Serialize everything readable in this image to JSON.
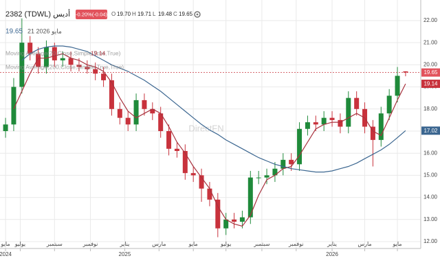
{
  "header": {
    "symbol": "2382 (TDWL) أديس",
    "change": "-0.20%(-0.04)",
    "ohlc": [
      {
        "label": "O",
        "value": "19.70"
      },
      {
        "label": "H",
        "value": "19.71"
      },
      {
        "label": "L",
        "value": "19.48"
      },
      {
        "label": "C",
        "value": "19.65"
      }
    ],
    "price": "19.65",
    "date": "21 مايو 2026",
    "watermark": "DirectFN"
  },
  "chart_data": {
    "type": "candlestick",
    "x": [
      0,
      0.5,
      1,
      1.5,
      2,
      2.5,
      3,
      3.5,
      4,
      4.5,
      5,
      5.5,
      6,
      6.5,
      7,
      7.5,
      8,
      8.5,
      9,
      9.5,
      10,
      10.5,
      11,
      11.5,
      12,
      12.5,
      13,
      13.5,
      14,
      14.5,
      15,
      15.5,
      16,
      16.5,
      17,
      17.5,
      18,
      18.5,
      19,
      19.5,
      20,
      20.5,
      21,
      21.5,
      22,
      22.5,
      23,
      23.5,
      24,
      24.5
    ],
    "open": [
      17.0,
      17.3,
      19.0,
      21.0,
      20.5,
      19.9,
      20.8,
      20.2,
      20.3,
      20.0,
      19.9,
      19.8,
      19.6,
      19.3,
      18.0,
      17.6,
      17.3,
      18.4,
      18.0,
      17.8,
      17.0,
      16.2,
      16.1,
      15.1,
      15.0,
      14.4,
      13.9,
      12.6,
      13.0,
      12.9,
      13.1,
      14.9,
      14.9,
      15.0,
      15.3,
      15.7,
      15.5,
      17.1,
      17.4,
      17.3,
      17.6,
      17.5,
      17.2,
      18.5,
      18.0,
      17.2,
      16.6,
      17.8,
      18.6,
      19.7
    ],
    "high": [
      17.6,
      19.4,
      22.1,
      21.3,
      20.8,
      21.1,
      21.0,
      20.6,
      20.6,
      20.3,
      20.2,
      20.1,
      19.9,
      19.6,
      18.3,
      17.9,
      18.7,
      18.7,
      18.3,
      18.1,
      17.3,
      16.5,
      16.4,
      15.4,
      15.3,
      14.7,
      14.2,
      13.3,
      13.3,
      13.4,
      15.2,
      15.2,
      15.3,
      15.6,
      16.0,
      16.0,
      17.4,
      17.7,
      17.7,
      17.9,
      17.9,
      17.8,
      18.8,
      18.8,
      18.3,
      17.5,
      18.1,
      18.9,
      19.9,
      19.71
    ],
    "low": [
      16.7,
      17.0,
      18.7,
      20.2,
      19.6,
      19.6,
      19.9,
      19.9,
      19.7,
      19.7,
      19.6,
      19.3,
      19.0,
      17.7,
      17.3,
      17.0,
      17.0,
      17.7,
      17.5,
      16.7,
      15.9,
      15.8,
      14.8,
      14.7,
      13.8,
      13.6,
      12.2,
      12.3,
      12.6,
      12.6,
      12.8,
      14.6,
      14.6,
      14.7,
      15.0,
      15.2,
      15.2,
      16.8,
      17.0,
      17.0,
      17.2,
      16.9,
      16.9,
      17.7,
      16.9,
      15.4,
      16.3,
      17.5,
      18.3,
      19.48
    ],
    "close": [
      17.3,
      19.0,
      21.0,
      20.5,
      19.9,
      20.8,
      20.2,
      20.3,
      20.0,
      19.9,
      19.8,
      19.6,
      19.3,
      18.0,
      17.6,
      17.3,
      18.4,
      18.0,
      17.8,
      17.0,
      16.2,
      16.1,
      15.1,
      15.0,
      14.4,
      13.9,
      12.6,
      13.0,
      12.9,
      13.1,
      14.9,
      14.9,
      15.0,
      15.3,
      15.7,
      15.5,
      17.1,
      17.4,
      17.3,
      17.6,
      17.5,
      17.2,
      18.5,
      18.0,
      17.2,
      16.6,
      17.8,
      18.6,
      19.5,
      19.65
    ],
    "color_up": "#1f8a3a",
    "color_down": "#c8323c",
    "series": [
      {
        "name": "Moving Average(20,Close,Simple,True,True)",
        "color": "#a8323e",
        "values": [
          null,
          18.0,
          18.8,
          19.6,
          20.3,
          20.3,
          20.4,
          20.5,
          20.3,
          20.2,
          20.0,
          19.9,
          19.7,
          19.2,
          18.5,
          17.9,
          17.6,
          17.8,
          18.0,
          17.8,
          17.2,
          16.5,
          16.0,
          15.4,
          14.9,
          14.4,
          13.6,
          13.0,
          12.8,
          12.7,
          13.2,
          14.1,
          14.8,
          15.0,
          15.3,
          15.4,
          15.9,
          16.5,
          17.1,
          17.3,
          17.4,
          17.4,
          17.6,
          17.8,
          17.6,
          17.0,
          16.8,
          17.6,
          18.4,
          19.14
        ]
      },
      {
        "name": "Moving Average(200,Close,Simple,True,True)",
        "color": "#3b6690",
        "values": [
          null,
          null,
          20.2,
          20.5,
          20.7,
          20.8,
          20.85,
          20.85,
          20.8,
          20.7,
          20.6,
          20.4,
          20.2,
          20.0,
          19.85,
          19.7,
          19.5,
          19.3,
          19.05,
          18.8,
          18.5,
          18.2,
          17.9,
          17.6,
          17.3,
          17.05,
          16.85,
          16.6,
          16.4,
          16.2,
          16.0,
          15.8,
          15.65,
          15.5,
          15.4,
          15.3,
          15.25,
          15.2,
          15.15,
          15.15,
          15.2,
          15.3,
          15.4,
          15.55,
          15.75,
          15.95,
          16.15,
          16.4,
          16.7,
          17.02
        ]
      }
    ],
    "xlim": [
      -0.34,
      25.43
    ],
    "xticks": [
      {
        "value": 0,
        "label": "مايو",
        "year": "2024"
      },
      {
        "value": 0.9,
        "label": "يوليو"
      },
      {
        "value": 3.0,
        "label": "سبتمبر"
      },
      {
        "value": 5.2,
        "label": "نوفمبر"
      },
      {
        "value": 7.3,
        "label": "يناير",
        "year": "2025"
      },
      {
        "value": 9.4,
        "label": "مارس"
      },
      {
        "value": 11.5,
        "label": "مايو"
      },
      {
        "value": 13.5,
        "label": "يوليو"
      },
      {
        "value": 15.7,
        "label": "سبتمبر"
      },
      {
        "value": 17.8,
        "label": "نوفمبر"
      },
      {
        "value": 20.0,
        "label": "يناير",
        "year": "2026"
      },
      {
        "value": 22.0,
        "label": "مارس"
      },
      {
        "value": 24.0,
        "label": "مايو"
      }
    ],
    "ylim": [
      11.69,
      22.93
    ],
    "yticks": [
      {
        "value": 12,
        "label": "12.00"
      },
      {
        "value": 13,
        "label": "13.00"
      },
      {
        "value": 14,
        "label": "14.00"
      },
      {
        "value": 15,
        "label": "15.00"
      },
      {
        "value": 16,
        "label": "16.00"
      },
      {
        "value": 17,
        "label": "17.00"
      },
      {
        "value": 18,
        "label": "18.00"
      },
      {
        "value": 19,
        "label": "19.00"
      },
      {
        "value": 20,
        "label": "20.00"
      },
      {
        "value": 21,
        "label": "21.00"
      },
      {
        "value": 22,
        "label": "22.00"
      }
    ],
    "grid": true
  }
}
